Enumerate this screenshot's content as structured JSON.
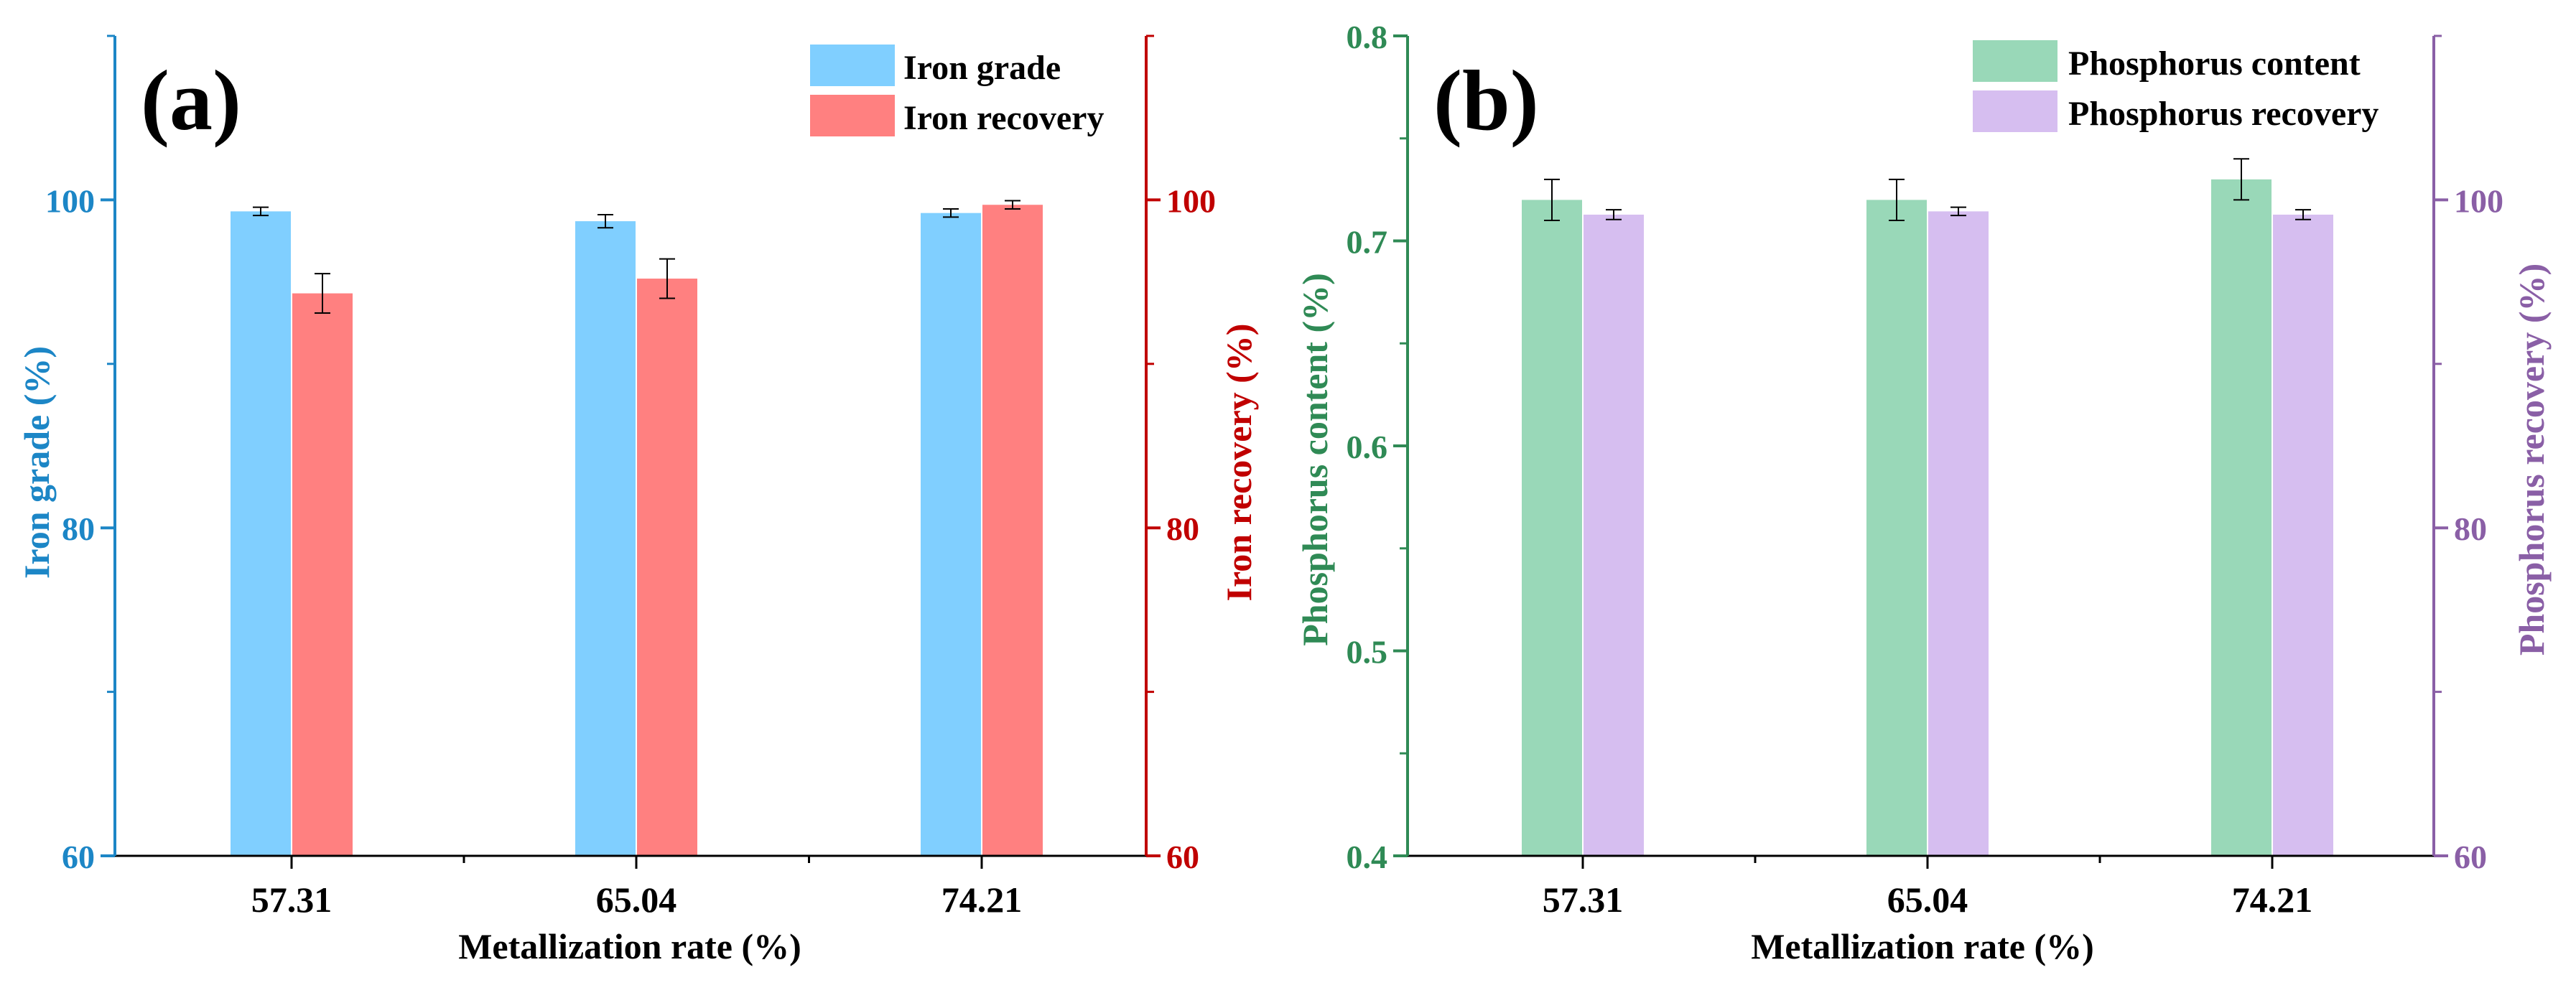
{
  "chart_data": [
    {
      "type": "bar",
      "panel_label": "(a)",
      "categories": [
        "57.31",
        "65.04",
        "74.21"
      ],
      "xlabel": "Metallization rate (%)",
      "legend_position": "top-right",
      "left_axis": {
        "label": "Iron grade (%)",
        "ylim": [
          60,
          110
        ],
        "ticks": [
          "60",
          "80",
          "100"
        ],
        "color": "#1c86c6"
      },
      "right_axis": {
        "label": "Iron recovery (%)",
        "ylim": [
          60,
          110
        ],
        "ticks": [
          "60",
          "80",
          "100"
        ],
        "color": "#c00000"
      },
      "series": [
        {
          "name": "Iron grade",
          "axis": "left",
          "color": "#80cfff",
          "values": [
            99.3,
            98.7,
            99.2
          ],
          "errors": [
            0.25,
            0.4,
            0.25
          ]
        },
        {
          "name": "Iron recovery",
          "axis": "right",
          "color": "#ff8080",
          "values": [
            94.3,
            95.2,
            99.7
          ],
          "errors": [
            1.2,
            1.2,
            0.25
          ]
        }
      ]
    },
    {
      "type": "bar",
      "panel_label": "(b)",
      "categories": [
        "57.31",
        "65.04",
        "74.21"
      ],
      "xlabel": "Metallization rate (%)",
      "legend_position": "top-right",
      "left_axis": {
        "label": "Phosphorus content (%)",
        "ylim": [
          0.4,
          0.8
        ],
        "ticks": [
          "0.4",
          "0.5",
          "0.6",
          "0.7",
          "0.8"
        ],
        "color": "#2f8a55"
      },
      "right_axis": {
        "label": "Phosphorus recovery (%)",
        "ylim": [
          60,
          110
        ],
        "ticks": [
          "60",
          "80",
          "100"
        ],
        "color": "#8a5fa6"
      },
      "series": [
        {
          "name": "Phosphorus content",
          "axis": "left",
          "color": "#99d8b8",
          "values": [
            0.72,
            0.72,
            0.73
          ],
          "errors": [
            0.01,
            0.01,
            0.01
          ]
        },
        {
          "name": "Phosphorus recovery",
          "axis": "right",
          "color": "#d6bef0",
          "values": [
            99.1,
            99.3,
            99.1
          ],
          "errors": [
            0.3,
            0.25,
            0.3
          ]
        }
      ]
    }
  ]
}
